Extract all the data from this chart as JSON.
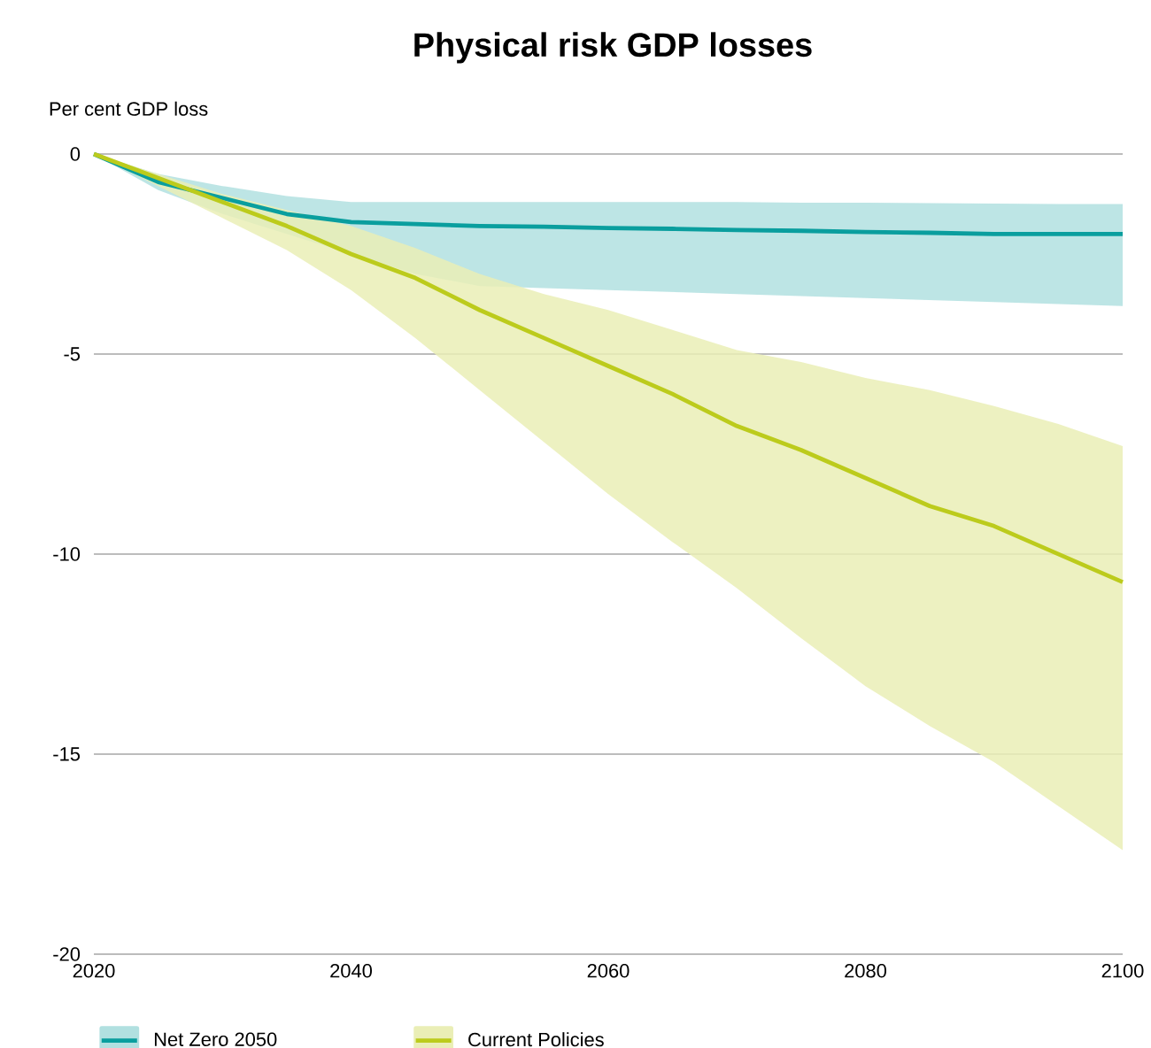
{
  "chart_data": {
    "type": "line",
    "title": "Physical risk GDP losses",
    "ylabel": "Per cent GDP loss",
    "x": [
      2020,
      2025,
      2030,
      2035,
      2040,
      2045,
      2050,
      2055,
      2060,
      2065,
      2070,
      2075,
      2080,
      2085,
      2090,
      2095,
      2100
    ],
    "series": [
      {
        "name": "Net Zero 2050",
        "color": "#0a9e9e",
        "values": [
          0,
          -0.7,
          -1.1,
          -1.5,
          -1.7,
          -1.75,
          -1.8,
          -1.82,
          -1.85,
          -1.87,
          -1.9,
          -1.92,
          -1.95,
          -1.97,
          -2.0,
          -2.0,
          -2.0
        ],
        "upper": [
          0,
          -0.5,
          -0.8,
          -1.05,
          -1.2,
          -1.2,
          -1.2,
          -1.2,
          -1.2,
          -1.2,
          -1.2,
          -1.22,
          -1.22,
          -1.23,
          -1.24,
          -1.25,
          -1.25
        ],
        "lower": [
          0,
          -0.9,
          -1.5,
          -2.0,
          -2.5,
          -3.0,
          -3.3,
          -3.35,
          -3.4,
          -3.45,
          -3.5,
          -3.55,
          -3.6,
          -3.65,
          -3.7,
          -3.75,
          -3.8
        ]
      },
      {
        "name": "Current Policies",
        "color": "#bccb1c",
        "values": [
          0,
          -0.6,
          -1.2,
          -1.8,
          -2.5,
          -3.1,
          -3.9,
          -4.6,
          -5.3,
          -6.0,
          -6.8,
          -7.4,
          -8.1,
          -8.8,
          -9.3,
          -10.0,
          -10.7
        ],
        "upper": [
          0,
          -0.5,
          -1.0,
          -1.4,
          -1.8,
          -2.35,
          -3.0,
          -3.5,
          -3.9,
          -4.4,
          -4.9,
          -5.2,
          -5.6,
          -5.9,
          -6.3,
          -6.75,
          -7.3
        ],
        "lower": [
          0,
          -0.8,
          -1.6,
          -2.4,
          -3.4,
          -4.6,
          -5.9,
          -7.2,
          -8.5,
          -9.7,
          -10.85,
          -12.1,
          -13.3,
          -14.3,
          -15.2,
          -16.3,
          -17.4
        ]
      }
    ],
    "xlim": [
      2020,
      2100
    ],
    "xticks": [
      2020,
      2040,
      2060,
      2080,
      2100
    ],
    "ylim": [
      -20,
      0
    ],
    "yticks": [
      0,
      -5,
      -10,
      -15,
      -20
    ],
    "grid": "y",
    "legend": "bottom",
    "marker": "none",
    "line_style": "solid"
  }
}
